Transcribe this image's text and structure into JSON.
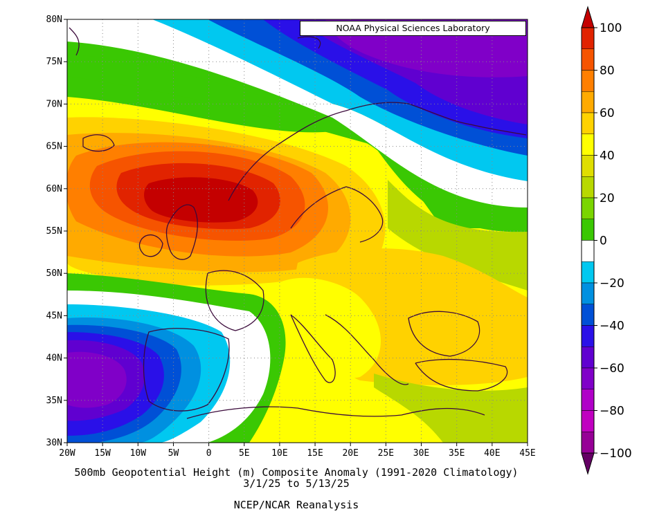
{
  "credit": "NOAA Physical Sciences Laboratory",
  "caption": {
    "title": "500mb Geopotential Height (m) Composite Anomaly (1991-2020 Climatology)",
    "dates": "3/1/25  to 5/13/25",
    "source": "NCEP/NCAR Reanalysis"
  },
  "map": {
    "lon_range": [
      -20,
      45
    ],
    "lat_range": [
      30,
      80
    ],
    "lon_labels": [
      "20W",
      "15W",
      "10W",
      "5W",
      "0",
      "5E",
      "10E",
      "15E",
      "20E",
      "25E",
      "30E",
      "35E",
      "40E",
      "45E"
    ],
    "lat_labels": [
      "30N",
      "35N",
      "40N",
      "45N",
      "50N",
      "55N",
      "60N",
      "65N",
      "70N",
      "75N",
      "80N"
    ],
    "grid": "dotted",
    "coastlines": true,
    "anomaly_features": [
      {
        "label": "positive maximum",
        "lon": -2,
        "lat": 58.5,
        "value": 100
      },
      {
        "label": "negative minimum",
        "lon": -16,
        "lat": 38,
        "value": -70
      },
      {
        "label": "negative region",
        "lon": 30,
        "lat": 78,
        "value": -60
      },
      {
        "label": "positive region",
        "lon": 28,
        "lat": 45,
        "value": 45
      }
    ]
  },
  "colorbar": {
    "labels": [
      "100",
      "80",
      "60",
      "40",
      "20",
      "0",
      "−20",
      "−40",
      "−60",
      "−80",
      "−100"
    ],
    "levels": [
      100,
      90,
      80,
      70,
      60,
      50,
      40,
      30,
      20,
      10,
      -10,
      -20,
      -30,
      -40,
      -50,
      -60,
      -70,
      -80,
      -90,
      -100
    ],
    "colors": [
      "#c40000",
      "#e12300",
      "#f65400",
      "#ff7f00",
      "#ffaa00",
      "#ffd200",
      "#ffff00",
      "#dfde00",
      "#b8d800",
      "#7ad500",
      "#3ac803",
      "#ffffff",
      "#01c8f0",
      "#0090e0",
      "#0050d6",
      "#2a10e8",
      "#6000d0",
      "#8000c8",
      "#b000c8",
      "#c000c0",
      "#960096",
      "#640064"
    ]
  }
}
